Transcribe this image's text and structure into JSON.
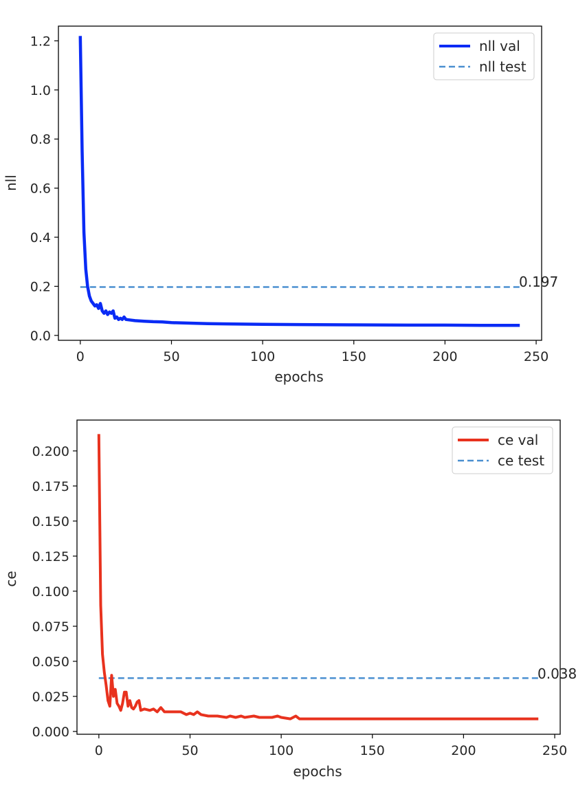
{
  "chart_data": [
    {
      "type": "line",
      "xlabel": "epochs",
      "ylabel": "nll",
      "xlim": [
        -12,
        253
      ],
      "ylim": [
        -0.02,
        1.26
      ],
      "xticks": [
        0,
        50,
        100,
        150,
        200,
        250
      ],
      "xtick_labels": [
        "0",
        "50",
        "100",
        "150",
        "200",
        "250"
      ],
      "yticks": [
        0.0,
        0.2,
        0.4,
        0.6,
        0.8,
        1.0,
        1.2
      ],
      "ytick_labels": [
        "0.0",
        "0.2",
        "0.4",
        "0.6",
        "0.8",
        "1.0",
        "1.2"
      ],
      "grid": false,
      "legend_position": "top-right",
      "series": [
        {
          "name": "nll val",
          "style": "solid",
          "color": "#0a2bf5",
          "x": [
            0,
            1,
            2,
            3,
            4,
            5,
            6,
            7,
            8,
            9,
            10,
            11,
            12,
            13,
            14,
            15,
            16,
            17,
            18,
            19,
            20,
            21,
            22,
            23,
            24,
            25,
            28,
            30,
            35,
            40,
            45,
            50,
            60,
            70,
            80,
            100,
            120,
            150,
            180,
            200,
            220,
            241
          ],
          "y": [
            1.22,
            0.75,
            0.42,
            0.27,
            0.2,
            0.16,
            0.14,
            0.13,
            0.12,
            0.125,
            0.11,
            0.13,
            0.1,
            0.09,
            0.1,
            0.085,
            0.095,
            0.09,
            0.1,
            0.07,
            0.075,
            0.065,
            0.07,
            0.065,
            0.075,
            0.065,
            0.062,
            0.06,
            0.058,
            0.056,
            0.055,
            0.052,
            0.05,
            0.048,
            0.047,
            0.045,
            0.044,
            0.043,
            0.042,
            0.042,
            0.041,
            0.041
          ]
        },
        {
          "name": "nll test",
          "style": "dashed",
          "color": "#4a8fd0",
          "x": [
            0,
            241
          ],
          "y": [
            0.197,
            0.197
          ]
        }
      ],
      "annotation": {
        "text": "0.197",
        "x": 241,
        "y": 0.197
      }
    },
    {
      "type": "line",
      "xlabel": "epochs",
      "ylabel": "ce",
      "xlim": [
        -12,
        253
      ],
      "ylim": [
        -0.002,
        0.222
      ],
      "xticks": [
        0,
        50,
        100,
        150,
        200,
        250
      ],
      "xtick_labels": [
        "0",
        "50",
        "100",
        "150",
        "200",
        "250"
      ],
      "yticks": [
        0.0,
        0.025,
        0.05,
        0.075,
        0.1,
        0.125,
        0.15,
        0.175,
        0.2
      ],
      "ytick_labels": [
        "0.000",
        "0.025",
        "0.050",
        "0.075",
        "0.100",
        "0.125",
        "0.150",
        "0.175",
        "0.200"
      ],
      "grid": false,
      "legend_position": "top-right",
      "series": [
        {
          "name": "ce val",
          "style": "solid",
          "color": "#e8321e",
          "x": [
            0,
            1,
            2,
            3,
            4,
            5,
            6,
            7,
            8,
            9,
            10,
            11,
            12,
            13,
            14,
            15,
            16,
            17,
            18,
            19,
            20,
            21,
            22,
            23,
            25,
            28,
            30,
            32,
            34,
            36,
            40,
            45,
            48,
            50,
            52,
            54,
            56,
            60,
            65,
            70,
            72,
            75,
            78,
            80,
            85,
            88,
            90,
            95,
            98,
            100,
            105,
            108,
            110,
            120,
            150,
            200,
            241
          ],
          "y": [
            0.212,
            0.09,
            0.055,
            0.042,
            0.033,
            0.022,
            0.018,
            0.04,
            0.025,
            0.03,
            0.02,
            0.018,
            0.015,
            0.02,
            0.028,
            0.028,
            0.018,
            0.022,
            0.017,
            0.016,
            0.018,
            0.021,
            0.022,
            0.015,
            0.016,
            0.015,
            0.016,
            0.014,
            0.017,
            0.014,
            0.014,
            0.014,
            0.012,
            0.013,
            0.012,
            0.014,
            0.012,
            0.011,
            0.011,
            0.01,
            0.011,
            0.01,
            0.011,
            0.01,
            0.011,
            0.01,
            0.01,
            0.01,
            0.011,
            0.01,
            0.009,
            0.011,
            0.009,
            0.009,
            0.009,
            0.009,
            0.009
          ]
        },
        {
          "name": "ce test",
          "style": "dashed",
          "color": "#4a8fd0",
          "x": [
            0,
            241
          ],
          "y": [
            0.038,
            0.038
          ]
        }
      ],
      "annotation": {
        "text": "0.038",
        "x": 241,
        "y": 0.038
      }
    }
  ]
}
